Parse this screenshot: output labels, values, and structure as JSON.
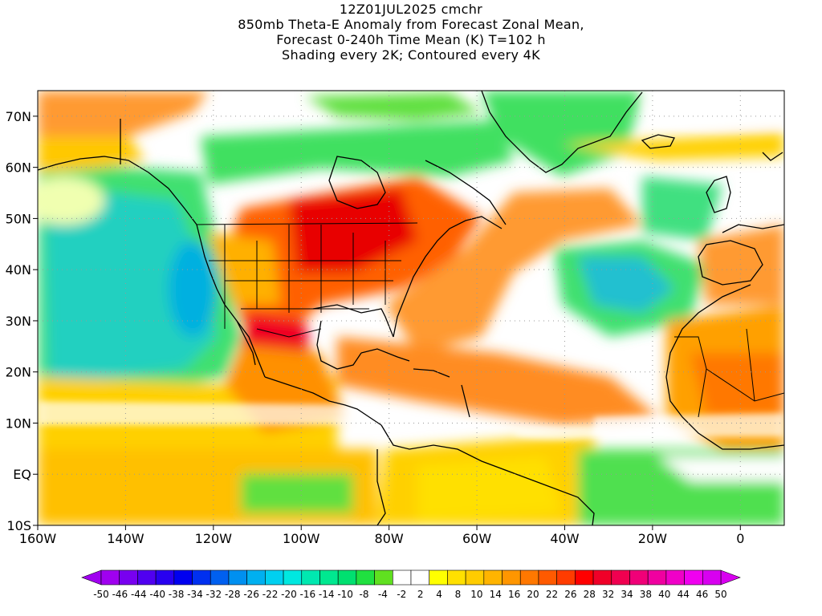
{
  "title": {
    "line1": "12Z01JUL2025 cmchr",
    "line2": "850mb Theta-E Anomaly from Forecast Zonal Mean,",
    "line3": "Forecast 0-240h Time Mean (K) T=102 h",
    "line4": "Shading every 2K; Contoured every 4K"
  },
  "map": {
    "lon_range": [
      -160,
      10
    ],
    "lat_range": [
      -10,
      75
    ],
    "projection": "lat-lon",
    "lon_ticks": [
      "160W",
      "140W",
      "120W",
      "100W",
      "80W",
      "60W",
      "40W",
      "20W",
      "0"
    ],
    "lat_ticks": [
      "70N",
      "60N",
      "50N",
      "40N",
      "30N",
      "20N",
      "10N",
      "EQ",
      "10S"
    ],
    "grid": "dotted"
  },
  "colorbar": {
    "labels": [
      "-50",
      "-46",
      "-44",
      "-40",
      "-38",
      "-34",
      "-32",
      "-28",
      "-26",
      "-22",
      "-20",
      "-16",
      "-14",
      "-10",
      "-8",
      "-4",
      "-2",
      "2",
      "4",
      "8",
      "10",
      "14",
      "16",
      "20",
      "22",
      "26",
      "28",
      "32",
      "34",
      "38",
      "40",
      "44",
      "46",
      "50"
    ],
    "colors": [
      "#a000f0",
      "#7800f0",
      "#5000f0",
      "#2800f0",
      "#0000f0",
      "#0030f0",
      "#0060f0",
      "#0090f0",
      "#00b0f0",
      "#00d0f0",
      "#00e8e0",
      "#00e8b0",
      "#00e890",
      "#00e070",
      "#20e040",
      "#60e020",
      "#ffffff",
      "#ffffff",
      "#ffff00",
      "#ffe000",
      "#ffcc00",
      "#ffb400",
      "#ff9600",
      "#ff7800",
      "#ff5a00",
      "#ff3c00",
      "#ff0000",
      "#f00028",
      "#f00050",
      "#f00078",
      "#f000a0",
      "#f000c8",
      "#f000f0",
      "#d800f0"
    ]
  }
}
